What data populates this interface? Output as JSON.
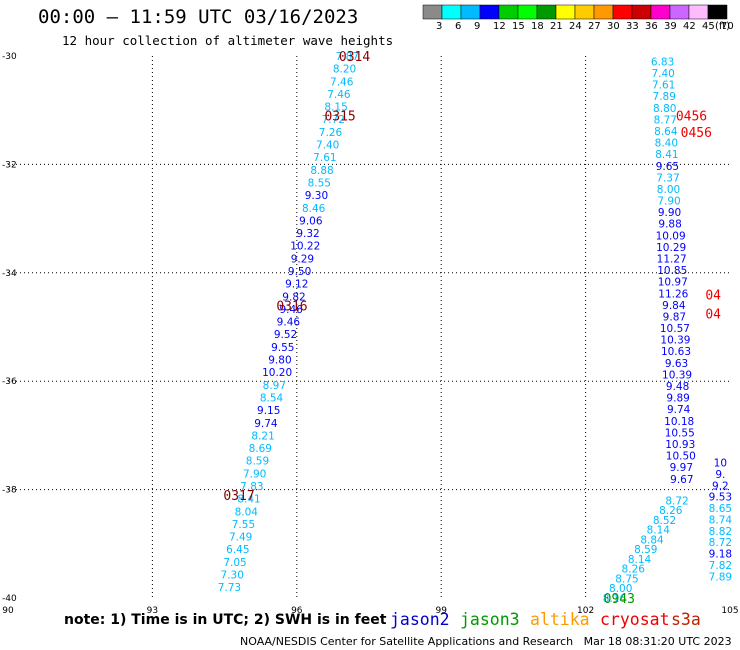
{
  "header": {
    "title": "00:00 – 11:59 UTC 03/16/2023",
    "subtitle": "12 hour collection of altimeter wave heights"
  },
  "footer": {
    "note": "note:  1) Time is in UTC;  2) SWH is in feet",
    "credit": "NOAA/NESDIS Center for Satellite Applications and Research",
    "timestamp": "Mar 18 08:31:20 UTC 2023",
    "satellites": [
      {
        "name": "jason2",
        "color": "#0000cc"
      },
      {
        "name": "jason3",
        "color": "#009900"
      },
      {
        "name": "altika",
        "color": "#ff9900"
      },
      {
        "name": "cryosat",
        "color": "#ee0000"
      },
      {
        "name": "s3a",
        "color": "#bb2200"
      }
    ]
  },
  "colorbar": {
    "unit": "(ft)",
    "labels": [
      "3",
      "6",
      "9",
      "12",
      "15",
      "18",
      "21",
      "24",
      "27",
      "30",
      "33",
      "36",
      "39",
      "42",
      "45",
      "70"
    ],
    "colors": [
      "#8a8a8a",
      "#00ffff",
      "#00bbff",
      "#0000ff",
      "#00cc00",
      "#00ff00",
      "#009900",
      "#ffff00",
      "#ffcc00",
      "#ff9900",
      "#ff0000",
      "#cc0000",
      "#ff00cc",
      "#cc66ff",
      "#ffbbff",
      "#000000"
    ]
  },
  "chart_data": {
    "type": "scatter",
    "xlim": [
      90,
      105
    ],
    "ylim": [
      -40,
      -30
    ],
    "xticks": [
      "90",
      "93",
      "96",
      "99",
      "102",
      "105"
    ],
    "yticks": [
      "-30",
      "-32",
      "-34",
      "-36",
      "-38",
      "-40"
    ],
    "grid": true,
    "time_labels": [
      {
        "text": "0314",
        "x": 97.2,
        "y": -30
      },
      {
        "text": "0315",
        "x": 96.9,
        "y": -31.1
      },
      {
        "text": "0316",
        "x": 95.9,
        "y": -34.6
      },
      {
        "text": "0317",
        "x": 94.8,
        "y": -38.1
      },
      {
        "text": "0456",
        "x": 104.2,
        "y": -31.1
      },
      {
        "text": "0456",
        "x": 104.3,
        "y": -31.4
      },
      {
        "text": "04",
        "x": 104.65,
        "y": -34.4
      },
      {
        "text": "04",
        "x": 104.65,
        "y": -34.75
      },
      {
        "text": "0943",
        "x": 102.7,
        "y": -40
      }
    ],
    "track_west": {
      "x_start": 97.05,
      "y_start": -30,
      "x_end": 94.6,
      "y_end": -39.8,
      "values": [
        "7.87",
        "8.20",
        "7.46",
        "7.46",
        "8.15",
        "7.72",
        "7.26",
        "7.40",
        "7.61",
        "8.88",
        "8.55",
        "9.30",
        "8.46",
        "9.06",
        "9.32",
        "10.22",
        "9.29",
        "9.50",
        "9.12",
        "9.82",
        "9.46",
        "9.46",
        "9.52",
        "9.55",
        "9.80",
        "10.20",
        "8.97",
        "8.54",
        "9.15",
        "9.74",
        "8.21",
        "8.69",
        "8.59",
        "7.90",
        "7.83",
        "8.41",
        "8.04",
        "7.55",
        "7.49",
        "6.45",
        "7.05",
        "7.30",
        "7.73"
      ]
    },
    "track_east": {
      "x_start": 103.6,
      "y_start": -30.1,
      "x_end": 104.0,
      "y_end": -37.8,
      "values": [
        "6.83",
        "7.40",
        "7.61",
        "7.89",
        "8.80",
        "8.77",
        "8.64",
        "8.40",
        "8.41",
        "9.65",
        "7.37",
        "8.00",
        "7.90",
        "9.90",
        "9.88",
        "10.09",
        "10.29",
        "11.27",
        "10.85",
        "10.97",
        "11.26",
        "9.84",
        "9.87",
        "10.57",
        "10.39",
        "10.63",
        "9.63",
        "10.39",
        "9.48",
        "9.89",
        "9.74",
        "10.18",
        "10.55",
        "10.93",
        "10.50",
        "9.97",
        "9.67"
      ]
    },
    "track_east_partial": {
      "x_start": 104.8,
      "y_start": -37.5,
      "x_end": 104.8,
      "y_end": -39.6,
      "values": [
        "10",
        "9.",
        "9.2",
        "9.53",
        "8.65",
        "8.74",
        "8.82",
        "8.72",
        "9.18",
        "7.82",
        "7.89"
      ]
    },
    "track_southeast": {
      "x_start": 103.9,
      "y_start": -38.2,
      "x_end": 102.6,
      "y_end": -40,
      "values": [
        "8.72",
        "8.26",
        "8.52",
        "8.14",
        "8.84",
        "8.59",
        "8.14",
        "8.26",
        "8.75",
        "8.00",
        "8.16"
      ]
    }
  }
}
